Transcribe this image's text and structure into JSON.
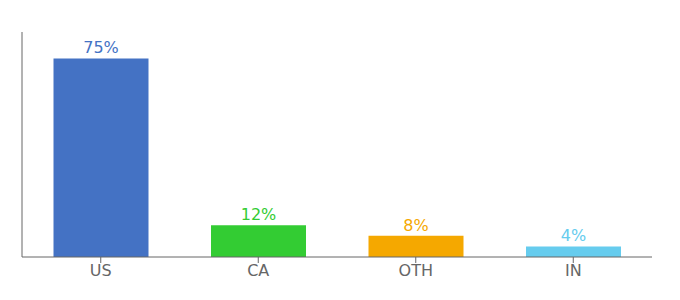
{
  "chart_data": {
    "type": "bar",
    "categories": [
      "US",
      "CA",
      "OTH",
      "IN"
    ],
    "values": [
      75,
      12,
      8,
      4
    ],
    "value_labels": [
      "75%",
      "12%",
      "8%",
      "4%"
    ],
    "data_labels": true,
    "colors": [
      "#4472C4",
      "#33CC33",
      "#F5A800",
      "#66CCEE"
    ],
    "ylim": [
      0,
      85
    ],
    "grid": false,
    "tick_labels": "x"
  }
}
